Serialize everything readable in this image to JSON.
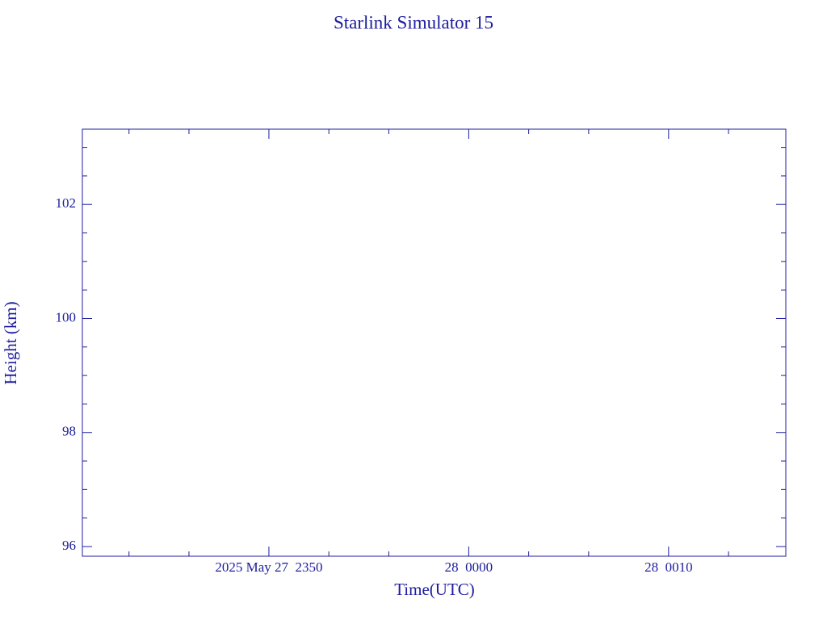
{
  "chart_data": {
    "type": "line",
    "title": "Starlink Simulator 15",
    "xlabel": "Time(UTC)",
    "ylabel": "Height (km)",
    "color": "#1c1ca0",
    "xlim": [
      "2025-05-27 23:40:40",
      "2025-05-28 00:15:52"
    ],
    "xticks": [
      {
        "value": "2025-05-27 23:50",
        "label": "2025 May 27  2350"
      },
      {
        "value": "2025-05-28 00:00",
        "label": "28  0000"
      },
      {
        "value": "2025-05-28 00:10",
        "label": "28  0010"
      }
    ],
    "xminorticks": [
      "2025-05-27 23:43",
      "2025-05-27 23:46",
      "2025-05-27 23:53",
      "2025-05-27 23:56",
      "2025-05-28 00:03",
      "2025-05-28 00:06",
      "2025-05-28 00:13"
    ],
    "ylim": [
      95.83,
      103.32
    ],
    "yticks": [
      96,
      98,
      100,
      102
    ],
    "yminorticks": [
      96.5,
      97,
      97.5,
      98.5,
      99,
      99.5,
      100.5,
      101,
      101.5,
      102.5,
      103
    ]
  }
}
